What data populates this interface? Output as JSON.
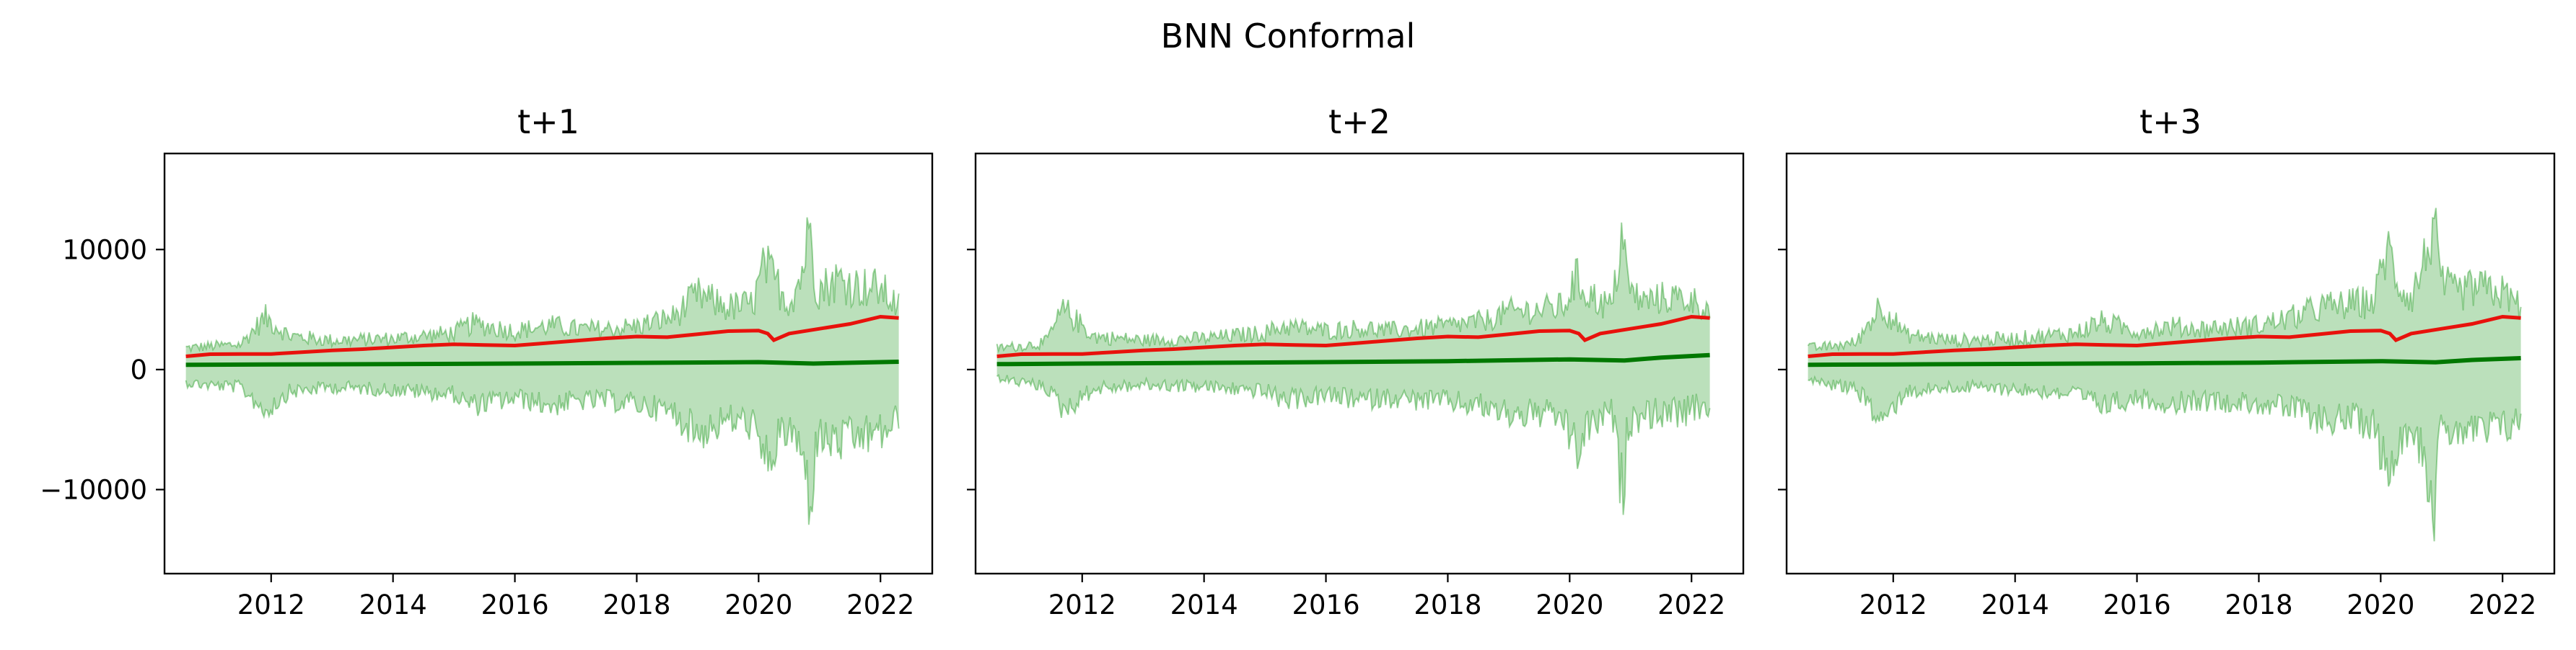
{
  "suptitle": "BNN Conformal",
  "chart_data": [
    {
      "type": "line",
      "title": "t+1",
      "xlabel": "",
      "ylabel": "",
      "xlim": [
        2010.25,
        2022.85
      ],
      "ylim": [
        -17000,
        18000
      ],
      "xticks": [
        2012,
        2014,
        2016,
        2018,
        2020,
        2022
      ],
      "yticks": [
        -10000,
        0,
        10000
      ],
      "ytick_labels": [
        "−10000",
        "0",
        "10000"
      ],
      "colors": {
        "band": "#2ca02c",
        "actual": "#e8120c",
        "predicted": "#007800"
      },
      "series": [
        {
          "role": "actual",
          "x": [
            2010.6,
            2011.0,
            2011.5,
            2012.0,
            2012.5,
            2013.0,
            2013.5,
            2014.0,
            2014.5,
            2015.0,
            2015.5,
            2016.0,
            2016.5,
            2017.0,
            2017.5,
            2018.0,
            2018.5,
            2019.0,
            2019.5,
            2020.0,
            2020.15,
            2020.25,
            2020.5,
            2021.0,
            2021.5,
            2022.0,
            2022.3
          ],
          "y": [
            1100,
            1280,
            1300,
            1300,
            1450,
            1600,
            1700,
            1850,
            2000,
            2100,
            2050,
            2000,
            2200,
            2400,
            2600,
            2750,
            2700,
            2950,
            3200,
            3250,
            3000,
            2450,
            3000,
            3400,
            3800,
            4400,
            4300
          ]
        },
        {
          "role": "predicted",
          "x": [
            2010.6,
            2012.0,
            2014.0,
            2016.0,
            2018.0,
            2020.0,
            2020.9,
            2022.3
          ],
          "y": [
            400,
            420,
            460,
            500,
            560,
            620,
            500,
            650
          ]
        },
        {
          "role": "upper",
          "x": [
            2010.6,
            2011.0,
            2011.5,
            2011.9,
            2012.3,
            2013.0,
            2014.0,
            2015.0,
            2015.3,
            2016.0,
            2016.6,
            2017.0,
            2017.5,
            2018.0,
            2018.6,
            2019.0,
            2019.5,
            2019.9,
            2020.1,
            2020.3,
            2020.5,
            2020.7,
            2020.88,
            2020.92,
            2021.0,
            2021.3,
            2021.6,
            2022.0,
            2022.3
          ],
          "y": [
            2200,
            2400,
            2600,
            5500,
            3500,
            3000,
            3200,
            3800,
            4800,
            4000,
            4600,
            4200,
            4200,
            4500,
            5500,
            7800,
            6500,
            6800,
            11000,
            9000,
            7000,
            10000,
            16300,
            9500,
            8500,
            9500,
            8800,
            8500,
            6500
          ]
        },
        {
          "role": "lower",
          "x": [
            2010.6,
            2011.0,
            2011.5,
            2011.9,
            2012.3,
            2013.0,
            2014.0,
            2015.0,
            2015.3,
            2016.0,
            2016.6,
            2017.0,
            2017.5,
            2018.0,
            2018.6,
            2019.0,
            2019.5,
            2019.9,
            2020.1,
            2020.3,
            2020.5,
            2020.7,
            2020.88,
            2020.92,
            2021.0,
            2021.3,
            2021.6,
            2022.0,
            2022.3
          ],
          "y": [
            -1500,
            -1800,
            -2000,
            -4500,
            -2500,
            -2000,
            -2300,
            -2800,
            -4000,
            -3200,
            -4000,
            -3500,
            -3500,
            -3800,
            -4800,
            -7000,
            -5500,
            -6000,
            -10500,
            -8000,
            -6500,
            -9000,
            -15300,
            -8000,
            -7500,
            -8000,
            -7500,
            -7000,
            -5500
          ]
        }
      ]
    },
    {
      "type": "line",
      "title": "t+2",
      "xlabel": "",
      "ylabel": "",
      "xlim": [
        2010.25,
        2022.85
      ],
      "ylim": [
        -17000,
        18000
      ],
      "xticks": [
        2012,
        2014,
        2016,
        2018,
        2020,
        2022
      ],
      "colors": {
        "band": "#2ca02c",
        "actual": "#e8120c",
        "predicted": "#007800"
      },
      "series": [
        {
          "role": "actual",
          "x": [
            2010.6,
            2011.0,
            2011.5,
            2012.0,
            2012.5,
            2013.0,
            2013.5,
            2014.0,
            2014.5,
            2015.0,
            2015.5,
            2016.0,
            2016.5,
            2017.0,
            2017.5,
            2018.0,
            2018.5,
            2019.0,
            2019.5,
            2020.0,
            2020.15,
            2020.25,
            2020.5,
            2021.0,
            2021.5,
            2022.0,
            2022.3
          ],
          "y": [
            1100,
            1280,
            1300,
            1300,
            1450,
            1600,
            1700,
            1850,
            2000,
            2100,
            2050,
            2000,
            2200,
            2400,
            2600,
            2750,
            2700,
            2950,
            3200,
            3250,
            3000,
            2450,
            3000,
            3400,
            3800,
            4400,
            4300
          ]
        },
        {
          "role": "predicted",
          "x": [
            2010.6,
            2012.0,
            2014.0,
            2016.0,
            2018.0,
            2020.0,
            2020.9,
            2021.5,
            2022.3
          ],
          "y": [
            450,
            500,
            560,
            620,
            700,
            850,
            750,
            1000,
            1200
          ]
        },
        {
          "role": "upper",
          "x": [
            2010.6,
            2011.0,
            2011.4,
            2011.7,
            2012.2,
            2013.0,
            2014.0,
            2015.0,
            2015.3,
            2016.0,
            2016.6,
            2017.0,
            2017.5,
            2018.0,
            2018.6,
            2019.0,
            2019.5,
            2019.9,
            2020.1,
            2020.3,
            2020.5,
            2020.7,
            2020.88,
            2020.95,
            2021.2,
            2021.6,
            2022.0,
            2022.3
          ],
          "y": [
            2200,
            2400,
            2800,
            6300,
            3400,
            3000,
            3200,
            3800,
            4500,
            4000,
            4300,
            4000,
            4200,
            4500,
            5000,
            6000,
            6200,
            6500,
            9500,
            8000,
            7000,
            6500,
            15500,
            8500,
            7000,
            7500,
            7200,
            6000
          ]
        },
        {
          "role": "lower",
          "x": [
            2010.6,
            2011.0,
            2011.4,
            2011.7,
            2012.2,
            2013.0,
            2014.0,
            2015.0,
            2015.3,
            2016.0,
            2016.6,
            2017.0,
            2017.5,
            2018.0,
            2018.6,
            2019.0,
            2019.5,
            2019.9,
            2020.1,
            2020.3,
            2020.5,
            2020.7,
            2020.88,
            2020.95,
            2021.2,
            2021.6,
            2022.0,
            2022.3
          ],
          "y": [
            -1000,
            -1500,
            -2000,
            -4500,
            -2200,
            -1800,
            -2000,
            -2500,
            -3500,
            -3000,
            -3500,
            -3200,
            -3500,
            -3600,
            -4200,
            -5000,
            -5000,
            -5500,
            -9200,
            -6500,
            -5500,
            -5000,
            -14200,
            -6000,
            -5000,
            -5000,
            -4800,
            -4000
          ]
        }
      ]
    },
    {
      "type": "line",
      "title": "t+3",
      "xlabel": "",
      "ylabel": "",
      "xlim": [
        2010.25,
        2022.85
      ],
      "ylim": [
        -17000,
        18000
      ],
      "xticks": [
        2012,
        2014,
        2016,
        2018,
        2020,
        2022
      ],
      "colors": {
        "band": "#2ca02c",
        "actual": "#e8120c",
        "predicted": "#007800"
      },
      "series": [
        {
          "role": "actual",
          "x": [
            2010.6,
            2011.0,
            2011.5,
            2012.0,
            2012.5,
            2013.0,
            2013.5,
            2014.0,
            2014.5,
            2015.0,
            2015.5,
            2016.0,
            2016.5,
            2017.0,
            2017.5,
            2018.0,
            2018.5,
            2019.0,
            2019.5,
            2020.0,
            2020.15,
            2020.25,
            2020.5,
            2021.0,
            2021.5,
            2022.0,
            2022.3
          ],
          "y": [
            1100,
            1280,
            1300,
            1300,
            1450,
            1600,
            1700,
            1850,
            2000,
            2100,
            2050,
            2000,
            2200,
            2400,
            2600,
            2750,
            2700,
            2950,
            3200,
            3250,
            3000,
            2450,
            3000,
            3400,
            3800,
            4400,
            4300
          ]
        },
        {
          "role": "predicted",
          "x": [
            2010.6,
            2012.0,
            2014.0,
            2016.0,
            2018.0,
            2020.0,
            2020.9,
            2021.5,
            2022.3
          ],
          "y": [
            400,
            430,
            470,
            520,
            580,
            700,
            600,
            800,
            950
          ]
        },
        {
          "role": "upper",
          "x": [
            2010.6,
            2011.0,
            2011.4,
            2011.8,
            2012.2,
            2013.0,
            2014.0,
            2015.0,
            2015.4,
            2016.0,
            2016.6,
            2017.0,
            2017.5,
            2018.0,
            2018.6,
            2019.0,
            2019.5,
            2019.9,
            2020.1,
            2020.3,
            2020.5,
            2020.7,
            2020.88,
            2020.95,
            2021.2,
            2021.6,
            2022.0,
            2022.3
          ],
          "y": [
            2200,
            2400,
            2800,
            7000,
            3600,
            3000,
            3200,
            3800,
            5000,
            4000,
            4500,
            4200,
            4400,
            4600,
            5500,
            6500,
            6800,
            7200,
            13000,
            9000,
            7500,
            11000,
            16200,
            9500,
            8000,
            8500,
            8000,
            6500
          ]
        },
        {
          "role": "lower",
          "x": [
            2010.6,
            2011.0,
            2011.4,
            2011.8,
            2012.2,
            2013.0,
            2014.0,
            2015.0,
            2015.4,
            2016.0,
            2016.6,
            2017.0,
            2017.5,
            2018.0,
            2018.6,
            2019.0,
            2019.5,
            2019.9,
            2020.1,
            2020.3,
            2020.5,
            2020.7,
            2020.88,
            2020.95,
            2021.2,
            2021.6,
            2022.0,
            2022.3
          ],
          "y": [
            -1200,
            -1800,
            -2200,
            -5800,
            -2500,
            -2000,
            -2200,
            -2800,
            -4000,
            -3200,
            -3800,
            -3500,
            -3600,
            -3800,
            -4500,
            -5500,
            -5500,
            -6000,
            -11500,
            -7500,
            -6000,
            -9000,
            -14700,
            -7500,
            -6500,
            -7000,
            -6500,
            -5500
          ]
        }
      ]
    }
  ]
}
